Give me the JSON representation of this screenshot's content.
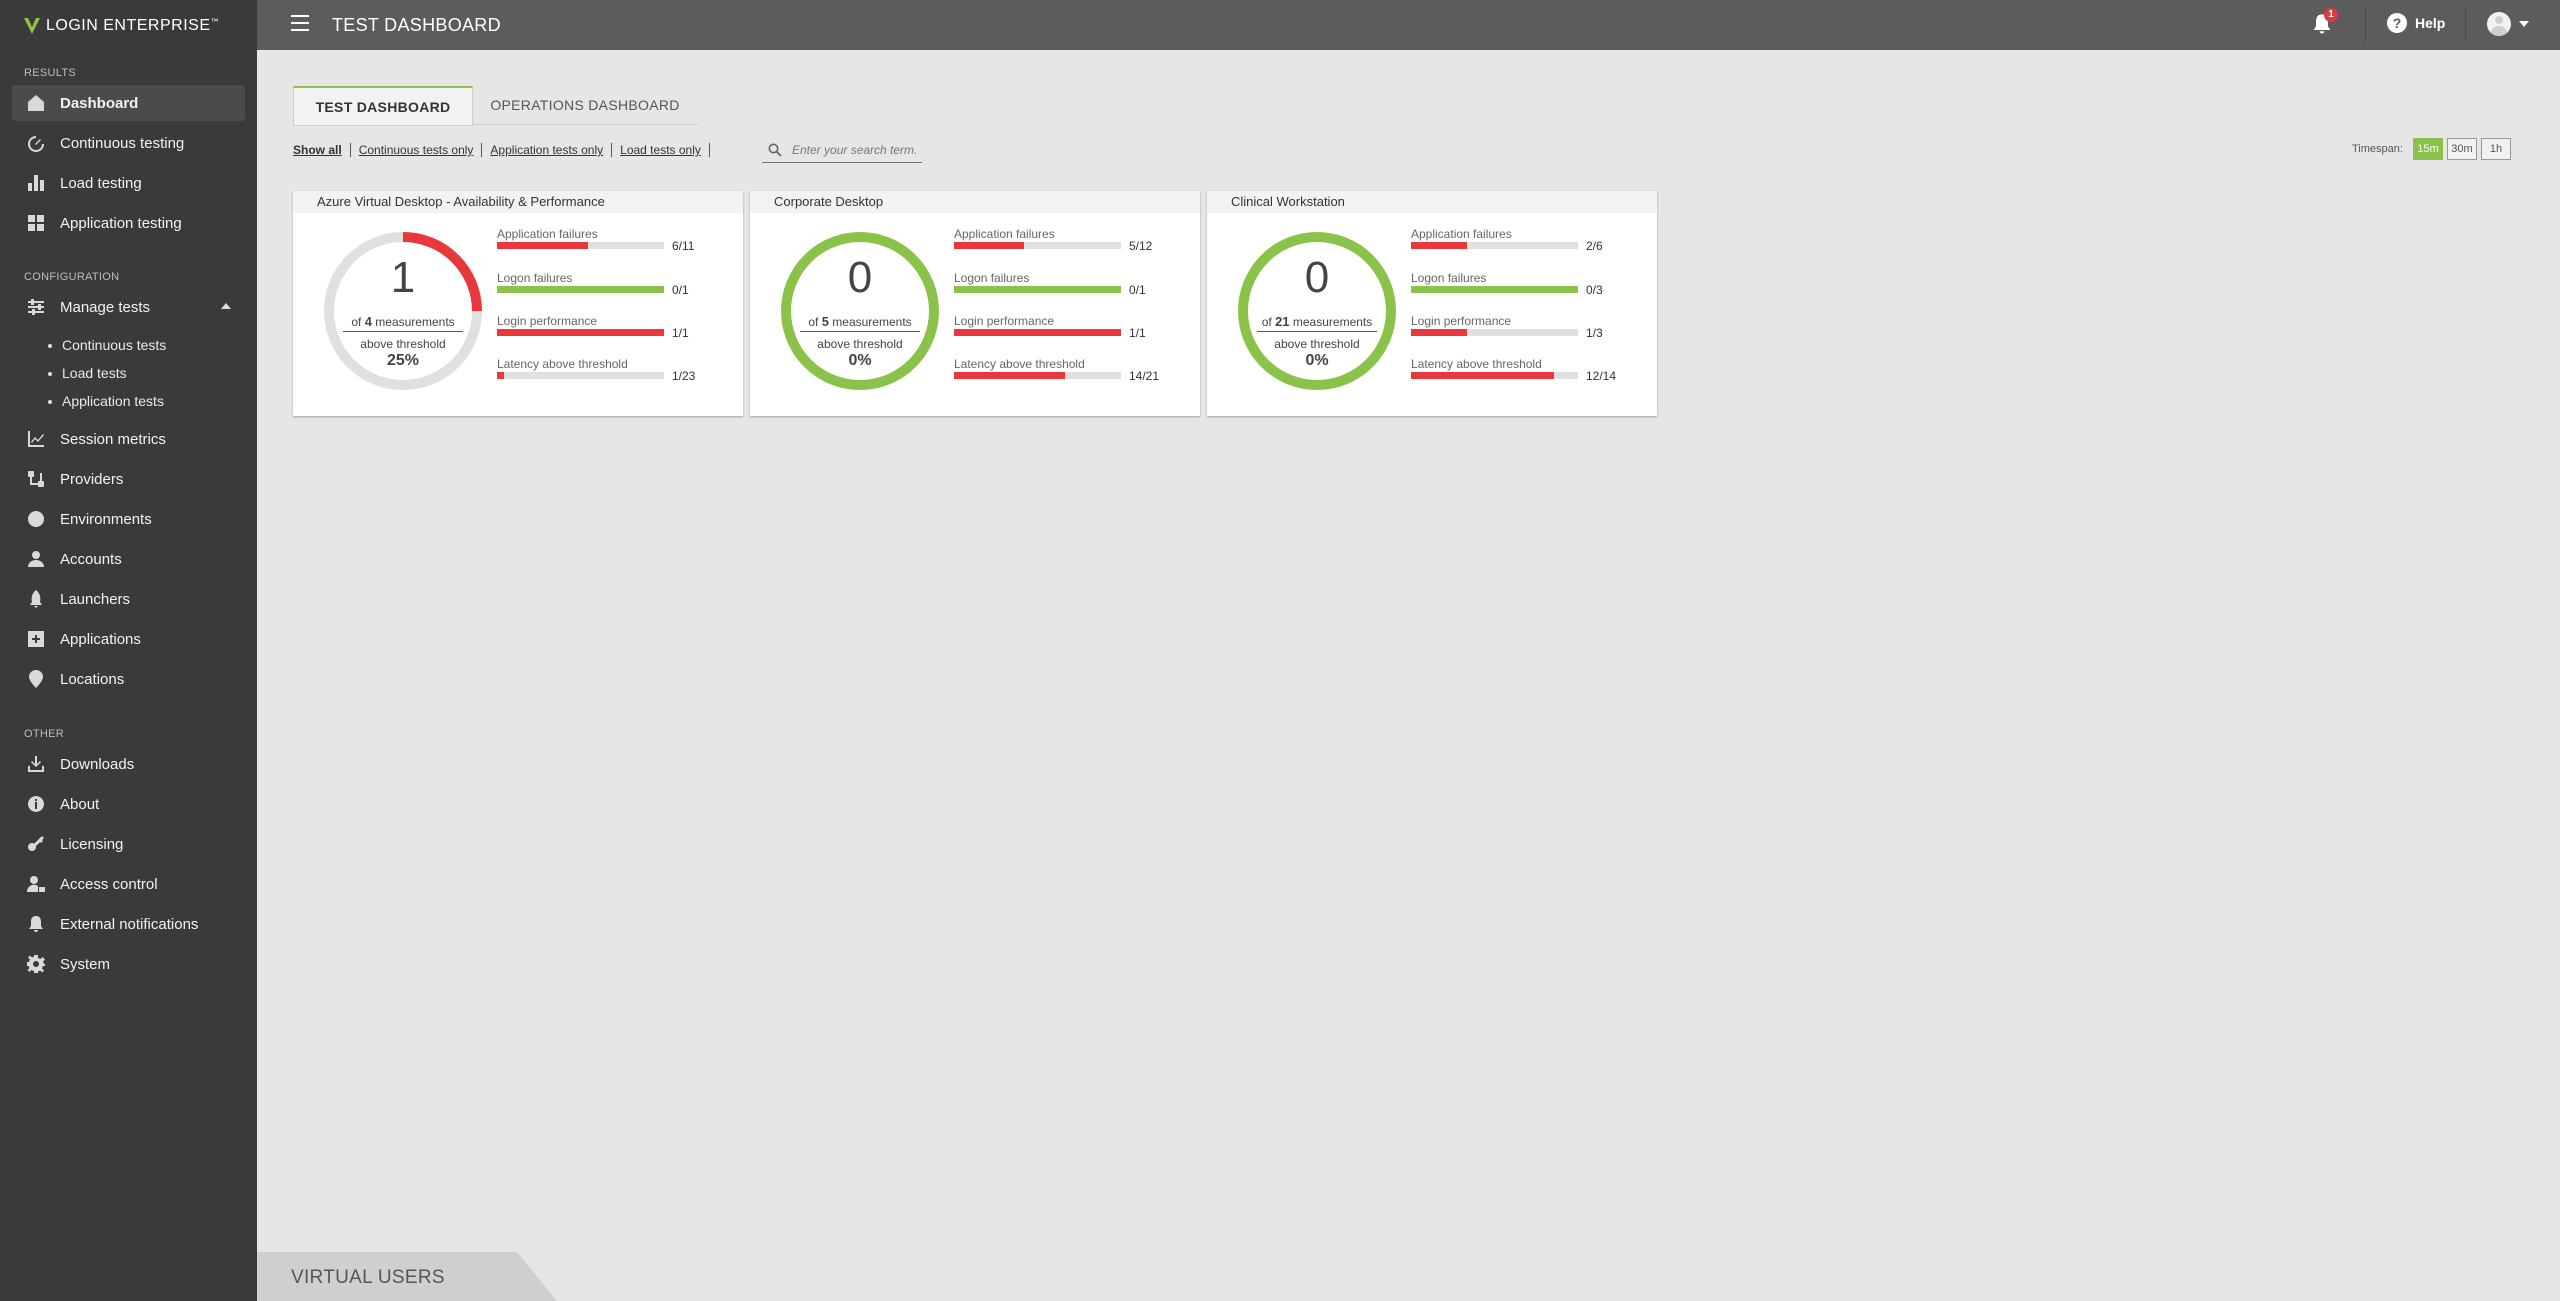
{
  "brand": {
    "name_light": "LOGIN",
    "name_bold": " ENTERPRISE",
    "tm": "™",
    "accent": "#8bc34a"
  },
  "sidebar": {
    "sections": {
      "results": "RESULTS",
      "configuration": "CONFIGURATION",
      "other": "OTHER"
    },
    "results": [
      {
        "label": "Dashboard",
        "icon": "home-icon",
        "active": true
      },
      {
        "label": "Continuous testing",
        "icon": "speedometer-icon"
      },
      {
        "label": "Load testing",
        "icon": "bar-chart-icon"
      },
      {
        "label": "Application testing",
        "icon": "grid-icon"
      }
    ],
    "manage": {
      "label": "Manage tests",
      "icon": "sliders-icon",
      "children": [
        "Continuous tests",
        "Load tests",
        "Application tests"
      ]
    },
    "config": [
      {
        "label": "Session metrics",
        "icon": "line-chart-icon"
      },
      {
        "label": "Providers",
        "icon": "providers-icon"
      },
      {
        "label": "Environments",
        "icon": "globe-icon"
      },
      {
        "label": "Accounts",
        "icon": "person-icon"
      },
      {
        "label": "Launchers",
        "icon": "rocket-icon"
      },
      {
        "label": "Applications",
        "icon": "app-icon"
      },
      {
        "label": "Locations",
        "icon": "location-pin-icon"
      }
    ],
    "other": [
      {
        "label": "Downloads",
        "icon": "download-icon"
      },
      {
        "label": "About",
        "icon": "info-icon"
      },
      {
        "label": "Licensing",
        "icon": "key-icon"
      },
      {
        "label": "Access control",
        "icon": "user-lock-icon"
      },
      {
        "label": "External notifications",
        "icon": "bell-icon"
      },
      {
        "label": "System",
        "icon": "gear-icon"
      }
    ]
  },
  "topbar": {
    "title": "TEST DASHBOARD",
    "notification_count": "1",
    "help": "Help"
  },
  "tabs": [
    "TEST DASHBOARD",
    "OPERATIONS DASHBOARD"
  ],
  "filters": [
    "Show all",
    "Continuous tests only",
    "Application tests only",
    "Load tests only"
  ],
  "search": {
    "placeholder": "Enter your search term."
  },
  "timespan": {
    "label": "Timespan:",
    "options": [
      "15m",
      "30m",
      "1h"
    ],
    "selected": "15m"
  },
  "colors": {
    "red": "#e8383d",
    "green": "#8bc34a",
    "track": "#e0e0e0"
  },
  "cards": [
    {
      "title": "Azure Virtual Desktop - Availability & Performance",
      "count": "1",
      "of_prefix": "of",
      "total": "4",
      "of_suffix": "measurements",
      "above": "above threshold",
      "pct": "25%",
      "ring_fraction": 0.25,
      "ring_status": "red",
      "metrics": [
        {
          "label": "Application failures",
          "value": "6/11",
          "fraction": 0.545,
          "status": "red"
        },
        {
          "label": "Logon failures",
          "value": "0/1",
          "fraction": 1,
          "status": "green"
        },
        {
          "label": "Login performance",
          "value": "1/1",
          "fraction": 1,
          "status": "red"
        },
        {
          "label": "Latency above threshold",
          "value": "1/23",
          "fraction": 0.043,
          "status": "red"
        }
      ]
    },
    {
      "title": "Corporate Desktop",
      "count": "0",
      "of_prefix": "of",
      "total": "5",
      "of_suffix": "measurements",
      "above": "above threshold",
      "pct": "0%",
      "ring_fraction": 0,
      "ring_status": "green",
      "metrics": [
        {
          "label": "Application failures",
          "value": "5/12",
          "fraction": 0.417,
          "status": "red"
        },
        {
          "label": "Logon failures",
          "value": "0/1",
          "fraction": 1,
          "status": "green"
        },
        {
          "label": "Login performance",
          "value": "1/1",
          "fraction": 1,
          "status": "red"
        },
        {
          "label": "Latency above threshold",
          "value": "14/21",
          "fraction": 0.667,
          "status": "red"
        }
      ]
    },
    {
      "title": "Clinical Workstation",
      "count": "0",
      "of_prefix": "of",
      "total": "21",
      "of_suffix": "measurements",
      "above": "above threshold",
      "pct": "0%",
      "ring_fraction": 0,
      "ring_status": "green",
      "metrics": [
        {
          "label": "Application failures",
          "value": "2/6",
          "fraction": 0.333,
          "status": "red"
        },
        {
          "label": "Logon failures",
          "value": "0/3",
          "fraction": 1,
          "status": "green"
        },
        {
          "label": "Login performance",
          "value": "1/3",
          "fraction": 0.333,
          "status": "red"
        },
        {
          "label": "Latency above threshold",
          "value": "12/14",
          "fraction": 0.857,
          "status": "red"
        }
      ]
    }
  ],
  "bottom": {
    "virtual_users": "VIRTUAL USERS"
  }
}
